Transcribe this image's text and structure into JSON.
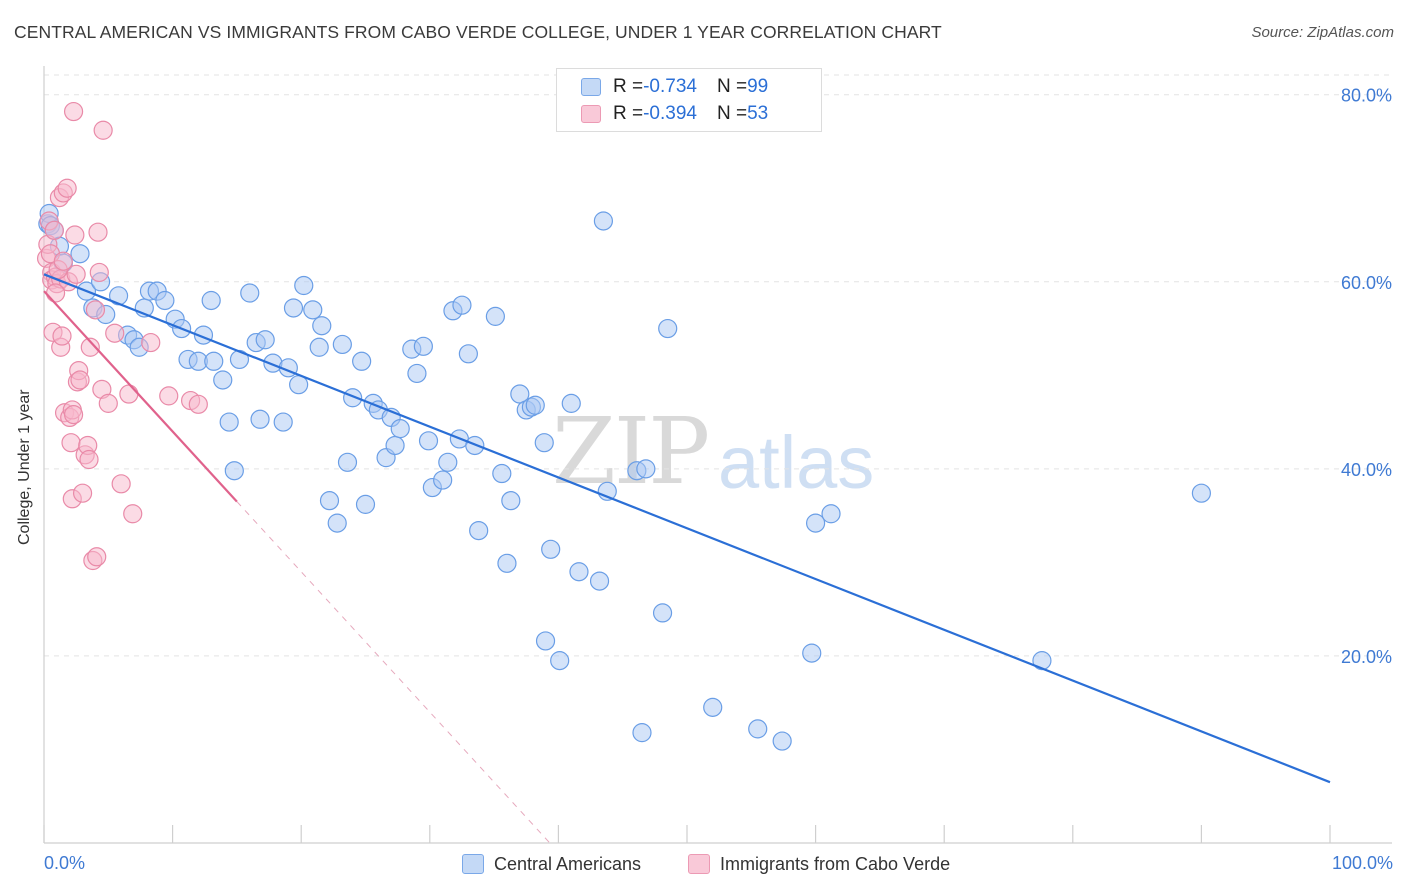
{
  "title": "CENTRAL AMERICAN VS IMMIGRANTS FROM CABO VERDE COLLEGE, UNDER 1 YEAR CORRELATION CHART",
  "source": "Source: ZipAtlas.com",
  "watermark": {
    "zip": "ZIP",
    "atlas": "atlas"
  },
  "colors": {
    "blue_fill": "#aac8f3",
    "blue_stroke": "#6a9ee6",
    "blue_line": "#2b6fd6",
    "pink_fill": "#f7b7cb",
    "pink_stroke": "#e98aa8",
    "pink_line": "#e0628c",
    "tick_text": "#3f7ad3",
    "grid": "#e3e3e3"
  },
  "legend": {
    "rows": [
      {
        "r_label": "R = ",
        "r_value": "-0.734",
        "n_label": "N = ",
        "n_value": "99",
        "color": "blue"
      },
      {
        "r_label": "R = ",
        "r_value": "-0.394",
        "n_label": "N = ",
        "n_value": "53",
        "color": "pink"
      }
    ]
  },
  "bottom_legend": {
    "series1": "Central Americans",
    "series2": "Immigrants from Cabo Verde"
  },
  "chart_data": {
    "type": "scatter",
    "title": "CENTRAL AMERICAN VS IMMIGRANTS FROM CABO VERDE COLLEGE, UNDER 1 YEAR CORRELATION CHART",
    "xlabel": "",
    "ylabel": "College, Under 1 year",
    "xlim": [
      0,
      100
    ],
    "ylim": [
      0,
      82
    ],
    "x_ticks_labels": [
      "0.0%",
      "100.0%"
    ],
    "y_ticks": [
      20,
      40,
      60,
      80
    ],
    "y_tick_labels": [
      "20.0%",
      "40.0%",
      "60.0%",
      "80.0%"
    ],
    "grid": true,
    "legend_placement": "top-center",
    "series": [
      {
        "name": "Central Americans",
        "color": "blue",
        "trend": {
          "x": [
            0,
            100
          ],
          "y": [
            60.8,
            6.5
          ]
        },
        "points": [
          [
            0.3,
            66.2
          ],
          [
            0.4,
            67.3
          ],
          [
            0.5,
            66.0
          ],
          [
            0.8,
            65.5
          ],
          [
            1.2,
            63.8
          ],
          [
            1.5,
            62.0
          ],
          [
            2.8,
            63.0
          ],
          [
            3.3,
            59.0
          ],
          [
            3.8,
            57.2
          ],
          [
            4.4,
            60.0
          ],
          [
            4.8,
            56.5
          ],
          [
            5.8,
            58.5
          ],
          [
            6.5,
            54.3
          ],
          [
            7.0,
            53.8
          ],
          [
            7.4,
            53.0
          ],
          [
            7.8,
            57.2
          ],
          [
            8.2,
            59.0
          ],
          [
            8.8,
            59.0
          ],
          [
            9.4,
            58.0
          ],
          [
            10.2,
            56.0
          ],
          [
            10.7,
            55.0
          ],
          [
            11.2,
            51.7
          ],
          [
            12.0,
            51.5
          ],
          [
            12.4,
            54.3
          ],
          [
            13.0,
            58.0
          ],
          [
            13.2,
            51.5
          ],
          [
            13.9,
            49.5
          ],
          [
            14.4,
            45.0
          ],
          [
            14.8,
            39.8
          ],
          [
            15.2,
            51.7
          ],
          [
            16.0,
            58.8
          ],
          [
            16.5,
            53.5
          ],
          [
            16.8,
            45.3
          ],
          [
            17.2,
            53.8
          ],
          [
            17.8,
            51.3
          ],
          [
            18.6,
            45.0
          ],
          [
            19.0,
            50.8
          ],
          [
            19.4,
            57.2
          ],
          [
            19.8,
            49.0
          ],
          [
            20.2,
            59.6
          ],
          [
            20.9,
            57.0
          ],
          [
            21.4,
            53.0
          ],
          [
            21.6,
            55.3
          ],
          [
            22.2,
            36.6
          ],
          [
            22.8,
            34.2
          ],
          [
            23.2,
            53.3
          ],
          [
            23.6,
            40.7
          ],
          [
            24.0,
            47.6
          ],
          [
            24.7,
            51.5
          ],
          [
            25.0,
            36.2
          ],
          [
            25.6,
            47.0
          ],
          [
            26.0,
            46.3
          ],
          [
            26.6,
            41.2
          ],
          [
            27.0,
            45.5
          ],
          [
            27.3,
            42.5
          ],
          [
            27.7,
            44.3
          ],
          [
            28.6,
            52.8
          ],
          [
            29.0,
            50.2
          ],
          [
            29.5,
            53.1
          ],
          [
            29.9,
            43.0
          ],
          [
            30.2,
            38.0
          ],
          [
            31.0,
            38.8
          ],
          [
            31.4,
            40.7
          ],
          [
            31.8,
            56.9
          ],
          [
            32.3,
            43.2
          ],
          [
            32.5,
            57.5
          ],
          [
            33.0,
            52.3
          ],
          [
            33.5,
            42.5
          ],
          [
            33.8,
            33.4
          ],
          [
            35.1,
            56.3
          ],
          [
            35.6,
            39.5
          ],
          [
            36.0,
            29.9
          ],
          [
            36.3,
            36.6
          ],
          [
            37.0,
            48.0
          ],
          [
            37.5,
            46.3
          ],
          [
            37.9,
            46.6
          ],
          [
            38.2,
            46.8
          ],
          [
            38.9,
            42.8
          ],
          [
            39.4,
            31.4
          ],
          [
            39.0,
            21.6
          ],
          [
            40.1,
            19.5
          ],
          [
            41.0,
            47.0
          ],
          [
            41.6,
            29.0
          ],
          [
            43.2,
            28.0
          ],
          [
            43.5,
            66.5
          ],
          [
            43.8,
            37.6
          ],
          [
            46.1,
            39.8
          ],
          [
            46.5,
            11.8
          ],
          [
            48.1,
            24.6
          ],
          [
            48.5,
            55.0
          ],
          [
            52.0,
            14.5
          ],
          [
            55.5,
            12.2
          ],
          [
            57.4,
            10.9
          ],
          [
            59.7,
            20.3
          ],
          [
            60.0,
            34.2
          ],
          [
            61.2,
            35.2
          ],
          [
            77.6,
            19.5
          ],
          [
            90.0,
            37.4
          ],
          [
            46.8,
            40.0
          ]
        ]
      },
      {
        "name": "Immigrants from Cabo Verde",
        "color": "pink",
        "trend": {
          "x": [
            0,
            15
          ],
          "y": [
            59.0,
            36.5
          ]
        },
        "points": [
          [
            0.2,
            62.5
          ],
          [
            0.3,
            64.0
          ],
          [
            0.4,
            66.5
          ],
          [
            0.5,
            63.0
          ],
          [
            0.6,
            61.0
          ],
          [
            0.6,
            60.2
          ],
          [
            0.7,
            54.6
          ],
          [
            0.8,
            65.5
          ],
          [
            0.9,
            60.5
          ],
          [
            1.0,
            59.8
          ],
          [
            1.2,
            69.0
          ],
          [
            1.3,
            60.3
          ],
          [
            1.3,
            53.0
          ],
          [
            1.4,
            54.2
          ],
          [
            1.5,
            69.5
          ],
          [
            1.6,
            46.0
          ],
          [
            1.8,
            70.0
          ],
          [
            1.9,
            60.0
          ],
          [
            2.0,
            45.5
          ],
          [
            2.1,
            42.8
          ],
          [
            2.2,
            46.3
          ],
          [
            2.3,
            45.8
          ],
          [
            2.2,
            36.8
          ],
          [
            2.3,
            78.2
          ],
          [
            2.4,
            65.0
          ],
          [
            2.5,
            60.8
          ],
          [
            2.6,
            49.3
          ],
          [
            2.7,
            50.5
          ],
          [
            2.8,
            49.5
          ],
          [
            3.0,
            37.4
          ],
          [
            3.2,
            41.5
          ],
          [
            3.4,
            42.5
          ],
          [
            3.5,
            41.0
          ],
          [
            3.6,
            53.0
          ],
          [
            3.8,
            30.2
          ],
          [
            4.0,
            57.0
          ],
          [
            4.1,
            30.6
          ],
          [
            4.2,
            65.3
          ],
          [
            4.3,
            61.0
          ],
          [
            4.5,
            48.5
          ],
          [
            4.6,
            76.2
          ],
          [
            5.0,
            47.0
          ],
          [
            5.5,
            54.5
          ],
          [
            6.0,
            38.4
          ],
          [
            6.6,
            48.0
          ],
          [
            6.9,
            35.2
          ],
          [
            8.3,
            53.5
          ],
          [
            9.7,
            47.8
          ],
          [
            11.4,
            47.3
          ],
          [
            12.0,
            46.9
          ],
          [
            1.1,
            61.3
          ],
          [
            1.5,
            62.2
          ],
          [
            0.9,
            58.8
          ]
        ]
      }
    ]
  }
}
